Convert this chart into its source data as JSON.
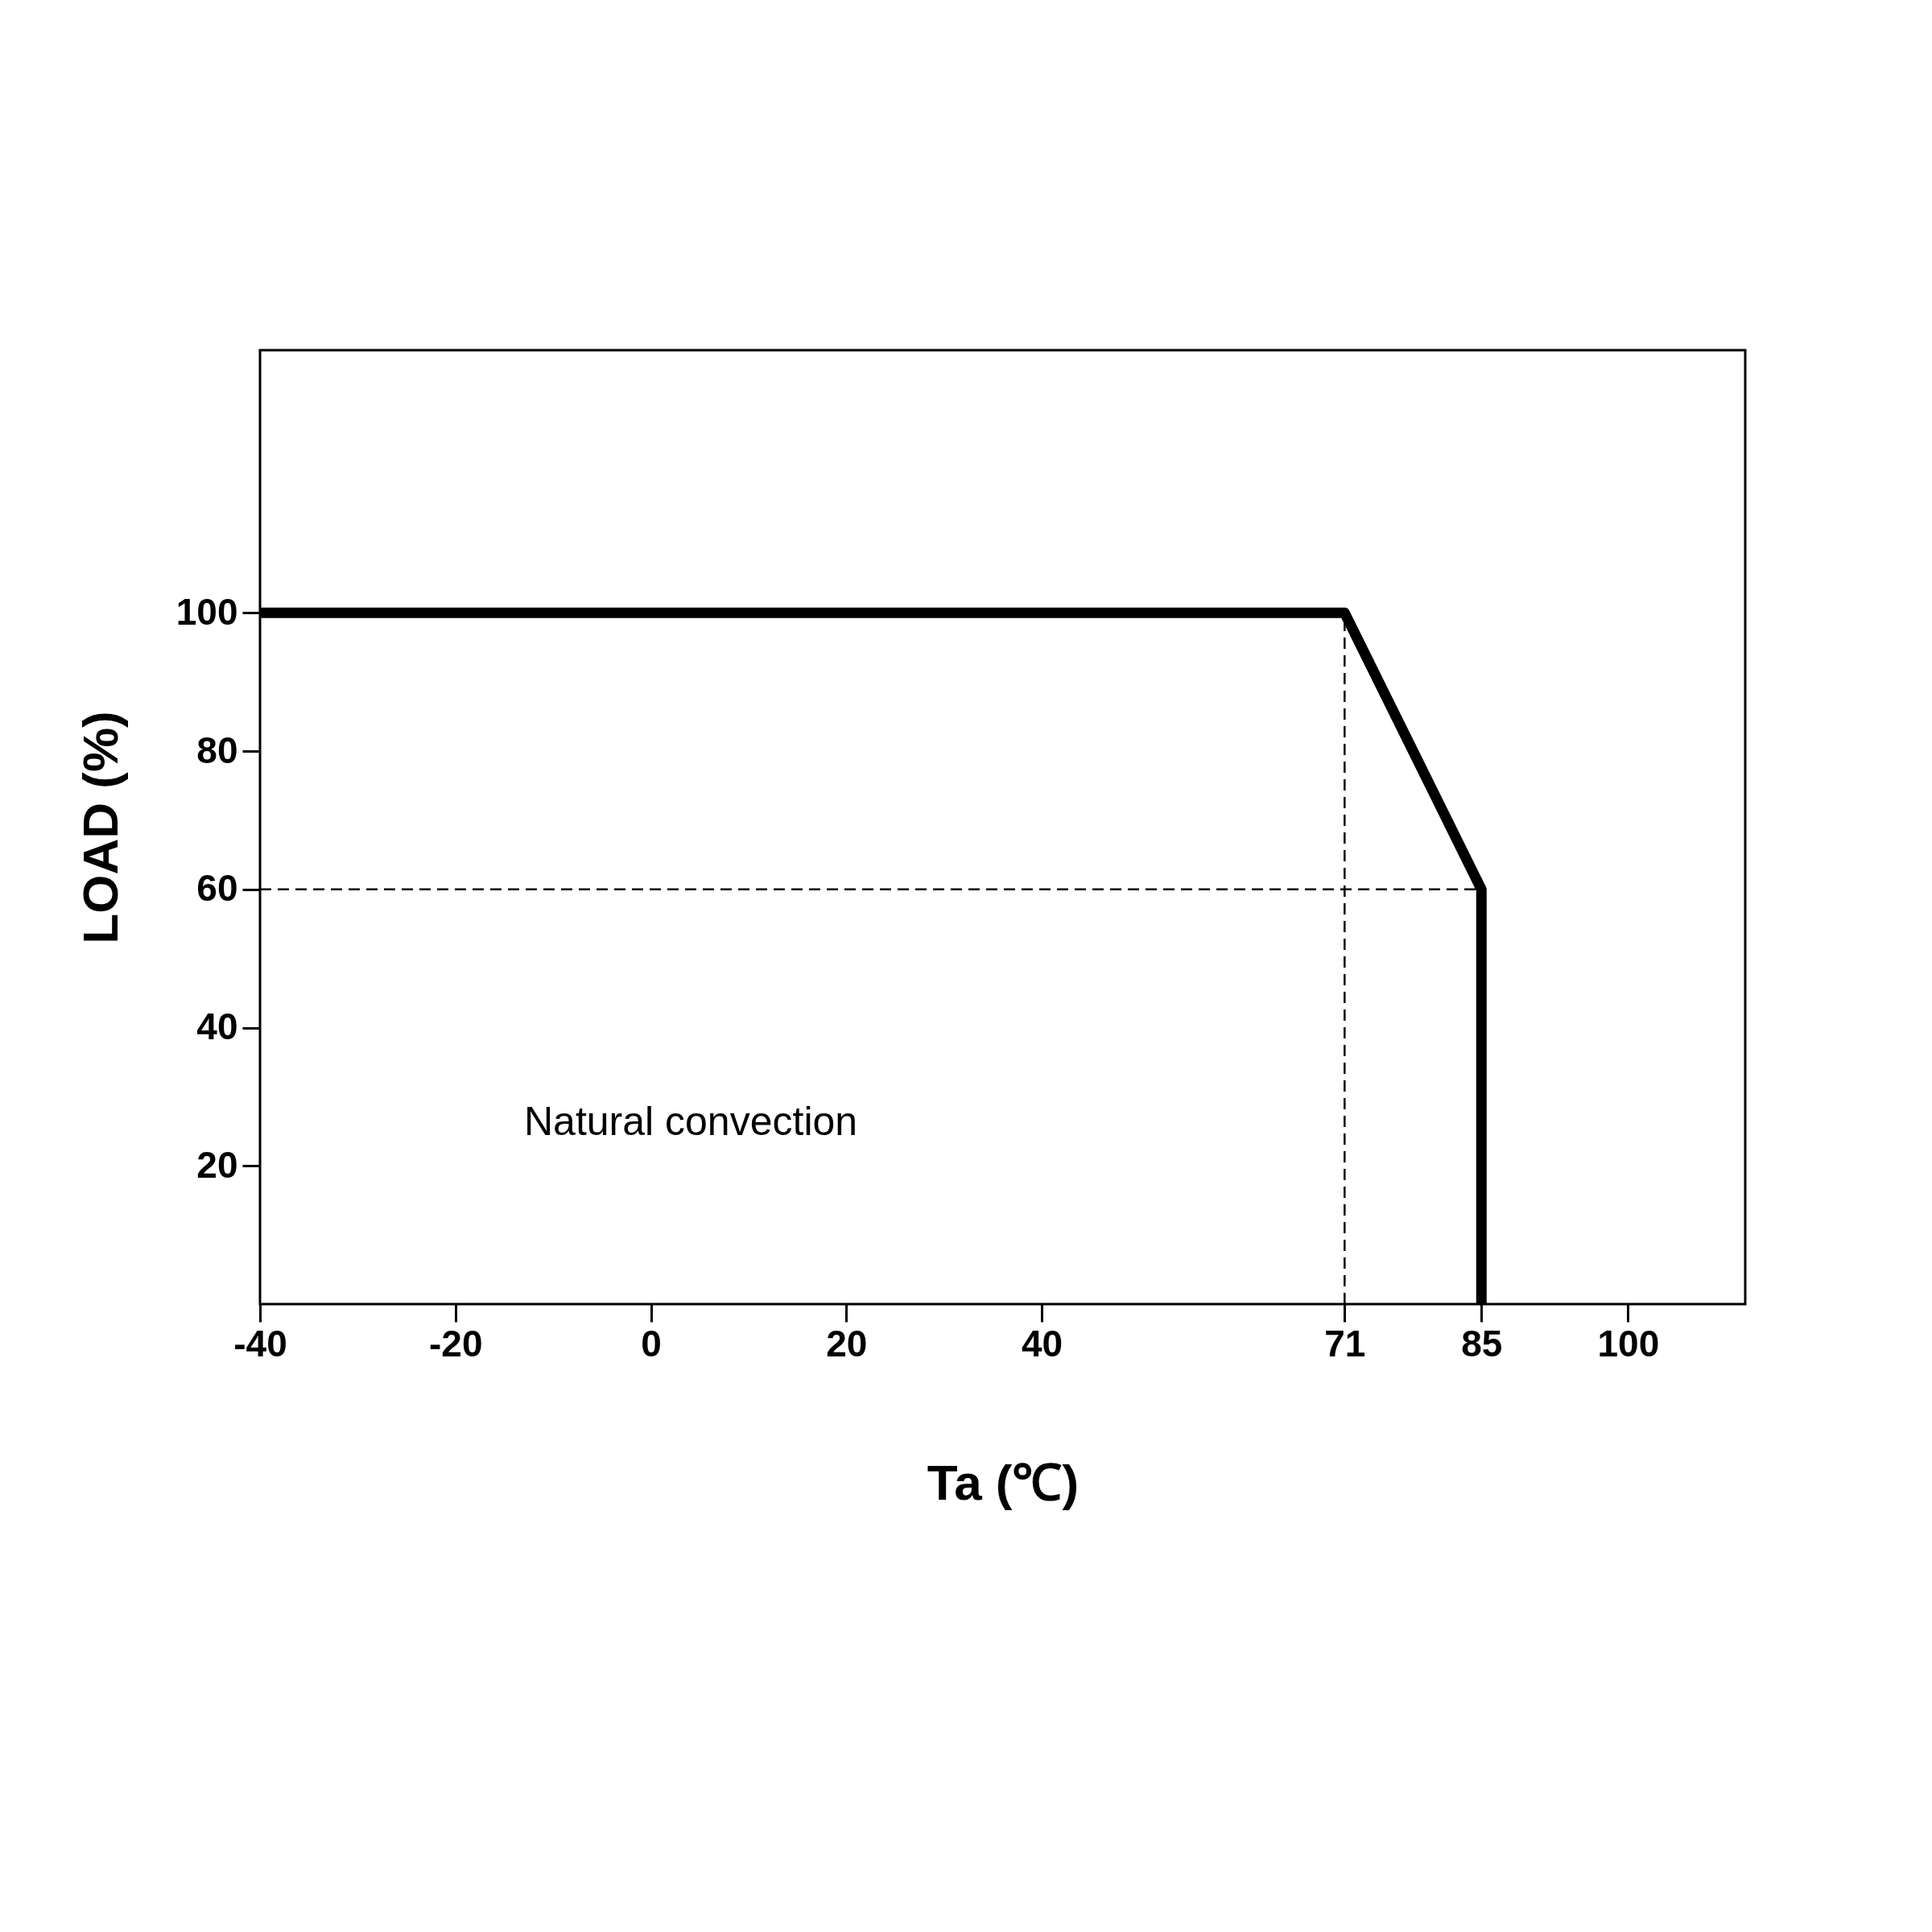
{
  "chart_data": {
    "type": "line",
    "xlabel": "Ta (℃)",
    "ylabel": "LOAD (%)",
    "x": [
      -40,
      71,
      85,
      85
    ],
    "series": [
      {
        "color": "#000000",
        "values": [
          100,
          100,
          60,
          0
        ]
      }
    ],
    "xlim": [
      -40,
      112
    ],
    "xticks": [
      -40,
      -20,
      0,
      20,
      40,
      71,
      85,
      100
    ],
    "ylim": [
      0,
      138
    ],
    "yticks": [
      20,
      40,
      60,
      80,
      100
    ],
    "ref_lines": [
      {
        "axis": "x",
        "value": 71,
        "line_style": "dashed",
        "color": "#000000"
      },
      {
        "axis": "y",
        "value": 60,
        "line_style": "dashed",
        "color": "#000000"
      }
    ],
    "annotations": [
      "Natural convection"
    ],
    "grid": false,
    "marker": "none",
    "line_style": "solid"
  }
}
